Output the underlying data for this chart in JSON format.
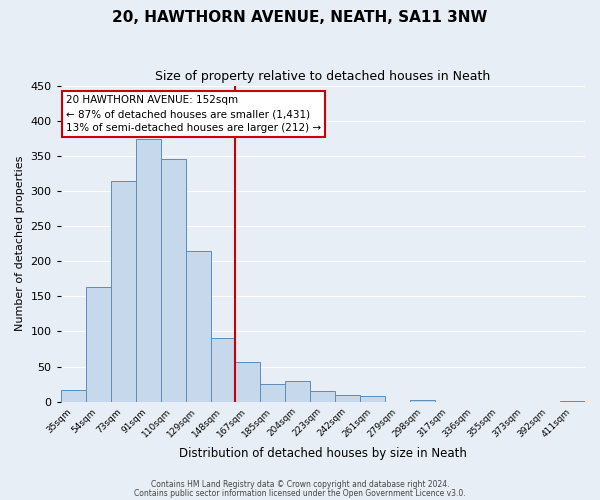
{
  "title": "20, HAWTHORN AVENUE, NEATH, SA11 3NW",
  "subtitle": "Size of property relative to detached houses in Neath",
  "xlabel": "Distribution of detached houses by size in Neath",
  "ylabel": "Number of detached properties",
  "bar_labels": [
    "35sqm",
    "54sqm",
    "73sqm",
    "91sqm",
    "110sqm",
    "129sqm",
    "148sqm",
    "167sqm",
    "185sqm",
    "204sqm",
    "223sqm",
    "242sqm",
    "261sqm",
    "279sqm",
    "298sqm",
    "317sqm",
    "336sqm",
    "355sqm",
    "373sqm",
    "392sqm",
    "411sqm"
  ],
  "bar_values": [
    16,
    163,
    314,
    374,
    345,
    215,
    90,
    57,
    25,
    29,
    15,
    10,
    8,
    0,
    2,
    0,
    0,
    0,
    0,
    0,
    1
  ],
  "bar_color": "#c6d9ec",
  "bar_edge_color": "#5b8db8",
  "vline_x": 6.5,
  "vline_color": "#cc0000",
  "annotation_text": "20 HAWTHORN AVENUE: 152sqm\n← 87% of detached houses are smaller (1,431)\n13% of semi-detached houses are larger (212) →",
  "annotation_box_color": "#ffffff",
  "annotation_box_edge": "#cc0000",
  "ylim": [
    0,
    450
  ],
  "yticks": [
    0,
    50,
    100,
    150,
    200,
    250,
    300,
    350,
    400,
    450
  ],
  "footer_line1": "Contains HM Land Registry data © Crown copyright and database right 2024.",
  "footer_line2": "Contains public sector information licensed under the Open Government Licence v3.0.",
  "bg_color": "#e8eef5",
  "plot_bg_color": "#e8eef5",
  "grid_color": "#ffffff",
  "title_fontsize": 11,
  "subtitle_fontsize": 9
}
